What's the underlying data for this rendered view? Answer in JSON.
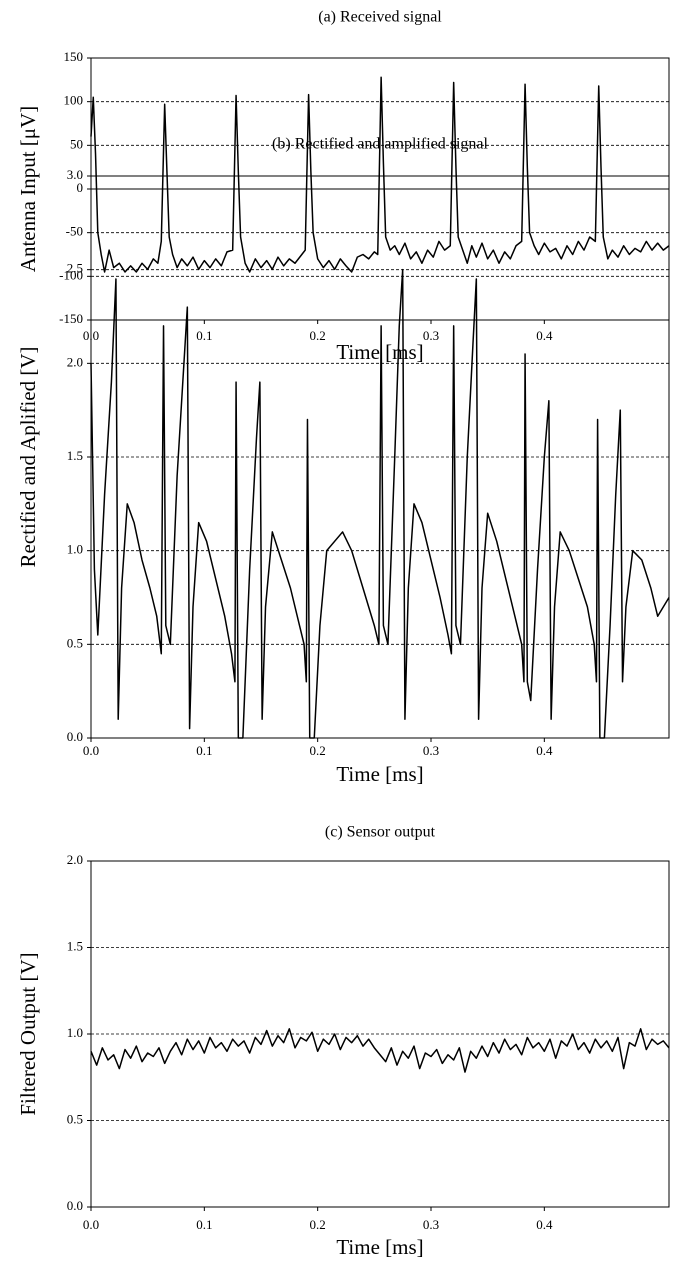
{
  "chart_data": [
    {
      "type": "line",
      "title": "(a) Received signal",
      "xlabel": "Time [ms]",
      "ylabel": "Antenna Input [μV]",
      "color": "#000000",
      "grid": true,
      "zero_line": true,
      "xlim": [
        0,
        0.51
      ],
      "xticks": [
        {
          "value": 0,
          "label": "0.0"
        },
        0.1,
        0.2,
        0.3,
        0.4
      ],
      "ylim": [
        -150,
        150
      ],
      "yticks": [
        -150,
        -100,
        -50,
        0,
        50,
        100,
        150
      ],
      "x": [
        0.0,
        0.002,
        0.004,
        0.006,
        0.009,
        0.012,
        0.016,
        0.02,
        0.025,
        0.03,
        0.035,
        0.04,
        0.045,
        0.05,
        0.055,
        0.059,
        0.062,
        0.065,
        0.067,
        0.069,
        0.072,
        0.076,
        0.08,
        0.085,
        0.09,
        0.095,
        0.1,
        0.105,
        0.11,
        0.115,
        0.12,
        0.125,
        0.128,
        0.13,
        0.132,
        0.136,
        0.14,
        0.145,
        0.15,
        0.155,
        0.16,
        0.165,
        0.17,
        0.175,
        0.18,
        0.186,
        0.189,
        0.192,
        0.194,
        0.196,
        0.2,
        0.205,
        0.21,
        0.215,
        0.22,
        0.225,
        0.23,
        0.235,
        0.24,
        0.245,
        0.25,
        0.253,
        0.256,
        0.258,
        0.26,
        0.264,
        0.268,
        0.272,
        0.277,
        0.282,
        0.287,
        0.292,
        0.297,
        0.302,
        0.307,
        0.312,
        0.317,
        0.32,
        0.322,
        0.324,
        0.328,
        0.332,
        0.336,
        0.34,
        0.345,
        0.35,
        0.355,
        0.36,
        0.365,
        0.37,
        0.375,
        0.38,
        0.383,
        0.385,
        0.387,
        0.391,
        0.395,
        0.4,
        0.405,
        0.41,
        0.415,
        0.42,
        0.425,
        0.43,
        0.435,
        0.44,
        0.445,
        0.448,
        0.45,
        0.452,
        0.456,
        0.46,
        0.465,
        0.47,
        0.475,
        0.48,
        0.485,
        0.49,
        0.495,
        0.5,
        0.505,
        0.51
      ],
      "values": [
        60,
        105,
        40,
        -50,
        -75,
        -95,
        -70,
        -90,
        -85,
        -95,
        -88,
        -95,
        -85,
        -92,
        -80,
        -85,
        -60,
        97,
        20,
        -55,
        -75,
        -90,
        -80,
        -88,
        -78,
        -92,
        -82,
        -90,
        -80,
        -88,
        -72,
        -70,
        107,
        20,
        -55,
        -85,
        -95,
        -80,
        -90,
        -82,
        -92,
        -78,
        -88,
        -80,
        -85,
        -75,
        -70,
        108,
        20,
        -50,
        -80,
        -90,
        -82,
        -92,
        -80,
        -88,
        -95,
        -78,
        -75,
        -80,
        -72,
        -75,
        128,
        30,
        -55,
        -70,
        -65,
        -75,
        -62,
        -80,
        -72,
        -85,
        -70,
        -78,
        -60,
        -70,
        -65,
        122,
        25,
        -55,
        -70,
        -85,
        -65,
        -78,
        -62,
        -80,
        -70,
        -85,
        -72,
        -80,
        -65,
        -60,
        120,
        25,
        -50,
        -65,
        -75,
        -62,
        -72,
        -68,
        -80,
        -65,
        -75,
        -60,
        -70,
        -55,
        -60,
        118,
        25,
        -55,
        -80,
        -70,
        -78,
        -65,
        -75,
        -68,
        -72,
        -60,
        -70,
        -62,
        -70,
        -65
      ]
    },
    {
      "type": "line",
      "title": "(b) Rectified and amplified signal",
      "xlabel": "Time [ms]",
      "ylabel": "Rectified and Aplified [V]",
      "color": "#000000",
      "grid": true,
      "xlim": [
        0,
        0.51
      ],
      "xticks": [
        {
          "value": 0,
          "label": "0.0"
        },
        0.1,
        0.2,
        0.3,
        0.4
      ],
      "ylim": [
        0,
        3
      ],
      "yticks": [
        {
          "value": 0,
          "label": "0.0"
        },
        0.5,
        {
          "value": 1,
          "label": "1.0"
        },
        1.5,
        {
          "value": 2,
          "label": "2.0"
        },
        2.5,
        {
          "value": 3,
          "label": "3.0"
        }
      ],
      "x": [
        0.0,
        0.003,
        0.006,
        0.012,
        0.018,
        0.022,
        0.024,
        0.027,
        0.032,
        0.038,
        0.045,
        0.052,
        0.058,
        0.062,
        0.064,
        0.066,
        0.07,
        0.076,
        0.082,
        0.085,
        0.087,
        0.09,
        0.095,
        0.102,
        0.11,
        0.118,
        0.124,
        0.127,
        0.128,
        0.13,
        0.134,
        0.14,
        0.146,
        0.149,
        0.151,
        0.154,
        0.16,
        0.168,
        0.176,
        0.184,
        0.188,
        0.19,
        0.191,
        0.193,
        0.197,
        0.202,
        0.208,
        0.222,
        0.23,
        0.24,
        0.25,
        0.254,
        0.256,
        0.258,
        0.262,
        0.268,
        0.272,
        0.275,
        0.277,
        0.28,
        0.285,
        0.292,
        0.3,
        0.308,
        0.315,
        0.318,
        0.32,
        0.322,
        0.326,
        0.332,
        0.337,
        0.34,
        0.342,
        0.345,
        0.35,
        0.358,
        0.366,
        0.374,
        0.38,
        0.382,
        0.383,
        0.385,
        0.388,
        0.394,
        0.4,
        0.404,
        0.406,
        0.409,
        0.414,
        0.422,
        0.43,
        0.438,
        0.444,
        0.446,
        0.447,
        0.449,
        0.453,
        0.458,
        0.463,
        0.467,
        0.469,
        0.472,
        0.478,
        0.486,
        0.494,
        0.5,
        0.505,
        0.51
      ],
      "values": [
        2.0,
        0.9,
        0.55,
        1.3,
        1.9,
        2.45,
        0.1,
        0.8,
        1.25,
        1.15,
        0.95,
        0.8,
        0.65,
        0.45,
        2.2,
        0.6,
        0.5,
        1.4,
        2.0,
        2.3,
        0.05,
        0.7,
        1.15,
        1.05,
        0.85,
        0.65,
        0.45,
        0.3,
        1.9,
        0.0,
        0.0,
        0.9,
        1.6,
        1.9,
        0.1,
        0.7,
        1.1,
        0.95,
        0.8,
        0.6,
        0.5,
        0.3,
        1.7,
        0.0,
        0.0,
        0.6,
        1.0,
        1.1,
        1.0,
        0.8,
        0.6,
        0.5,
        2.2,
        0.6,
        0.5,
        1.5,
        2.2,
        2.5,
        0.1,
        0.8,
        1.25,
        1.15,
        0.95,
        0.75,
        0.55,
        0.45,
        2.2,
        0.6,
        0.5,
        1.5,
        2.1,
        2.45,
        0.1,
        0.8,
        1.2,
        1.05,
        0.85,
        0.65,
        0.5,
        0.3,
        2.05,
        0.3,
        0.2,
        0.9,
        1.5,
        1.8,
        0.1,
        0.7,
        1.1,
        1.0,
        0.85,
        0.7,
        0.5,
        0.3,
        1.7,
        0.0,
        0.0,
        0.6,
        1.3,
        1.75,
        0.3,
        0.7,
        1.0,
        0.95,
        0.8,
        0.65,
        0.7,
        0.75
      ]
    },
    {
      "type": "line",
      "title": "(c) Sensor output",
      "xlabel": "Time [ms]",
      "ylabel": "Filtered Output [V]",
      "color": "#000000",
      "grid": true,
      "xlim": [
        0,
        0.51
      ],
      "xticks": [
        {
          "value": 0,
          "label": "0.0"
        },
        0.1,
        0.2,
        0.3,
        0.4
      ],
      "ylim": [
        0,
        2
      ],
      "yticks": [
        {
          "value": 0,
          "label": "0.0"
        },
        0.5,
        {
          "value": 1,
          "label": "1.0"
        },
        1.5,
        {
          "value": 2,
          "label": "2.0"
        }
      ],
      "x": [
        0,
        0.005,
        0.01,
        0.015,
        0.02,
        0.025,
        0.03,
        0.035,
        0.04,
        0.045,
        0.05,
        0.055,
        0.06,
        0.065,
        0.07,
        0.075,
        0.08,
        0.085,
        0.09,
        0.095,
        0.1,
        0.105,
        0.11,
        0.115,
        0.12,
        0.125,
        0.13,
        0.135,
        0.14,
        0.145,
        0.15,
        0.155,
        0.16,
        0.165,
        0.17,
        0.175,
        0.18,
        0.185,
        0.19,
        0.195,
        0.2,
        0.205,
        0.21,
        0.215,
        0.22,
        0.225,
        0.23,
        0.235,
        0.24,
        0.245,
        0.25,
        0.255,
        0.26,
        0.265,
        0.27,
        0.275,
        0.28,
        0.285,
        0.29,
        0.295,
        0.3,
        0.305,
        0.31,
        0.315,
        0.32,
        0.325,
        0.33,
        0.335,
        0.34,
        0.345,
        0.35,
        0.355,
        0.36,
        0.365,
        0.37,
        0.375,
        0.38,
        0.385,
        0.39,
        0.395,
        0.4,
        0.405,
        0.41,
        0.415,
        0.42,
        0.425,
        0.43,
        0.435,
        0.44,
        0.445,
        0.45,
        0.455,
        0.46,
        0.465,
        0.47,
        0.475,
        0.48,
        0.485,
        0.49,
        0.495,
        0.5,
        0.505,
        0.51
      ],
      "values": [
        0.9,
        0.82,
        0.92,
        0.85,
        0.88,
        0.8,
        0.91,
        0.86,
        0.93,
        0.84,
        0.89,
        0.87,
        0.92,
        0.83,
        0.9,
        0.95,
        0.88,
        0.97,
        0.91,
        0.96,
        0.89,
        0.98,
        0.92,
        0.95,
        0.9,
        0.97,
        0.93,
        0.96,
        0.89,
        0.98,
        0.94,
        1.02,
        0.93,
        0.99,
        0.95,
        1.03,
        0.92,
        0.98,
        0.96,
        1.01,
        0.9,
        0.97,
        0.94,
        1.0,
        0.91,
        0.98,
        0.95,
        0.99,
        0.93,
        0.97,
        0.92,
        0.88,
        0.84,
        0.92,
        0.82,
        0.9,
        0.86,
        0.93,
        0.8,
        0.89,
        0.87,
        0.91,
        0.83,
        0.88,
        0.85,
        0.92,
        0.78,
        0.9,
        0.86,
        0.93,
        0.87,
        0.95,
        0.89,
        0.97,
        0.91,
        0.94,
        0.88,
        0.98,
        0.92,
        0.95,
        0.9,
        0.97,
        0.86,
        0.96,
        0.93,
        1.0,
        0.91,
        0.95,
        0.89,
        0.97,
        0.92,
        0.96,
        0.9,
        0.98,
        0.8,
        0.95,
        0.93,
        1.03,
        0.91,
        0.97,
        0.94,
        0.96,
        0.92
      ]
    }
  ]
}
